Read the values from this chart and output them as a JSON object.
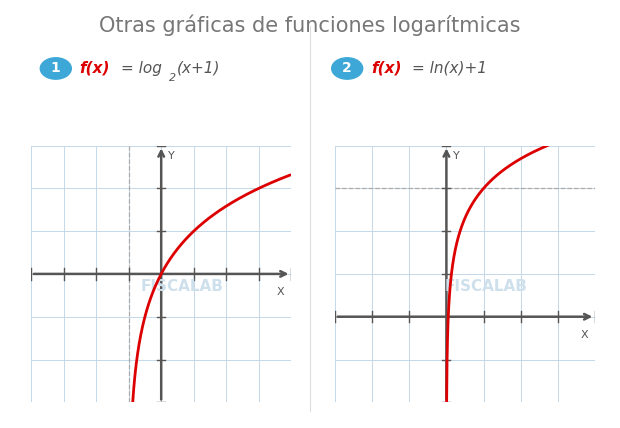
{
  "title": "Otras gráficas de funciones logarítmicas",
  "title_color": "#777777",
  "title_fontsize": 15,
  "background_color": "#ffffff",
  "grid_color": "#c5d8e8",
  "axis_color": "#555555",
  "curve_color": "#dd0000",
  "badge_color": "#3da8d8",
  "watermark_color": "#cfe0ed",
  "plot1_xlim": [
    -4,
    4
  ],
  "plot1_ylim": [
    -3,
    3
  ],
  "plot2_xlim": [
    -3,
    4
  ],
  "plot2_ylim": [
    -4,
    2
  ],
  "dashed_line_y": 1
}
